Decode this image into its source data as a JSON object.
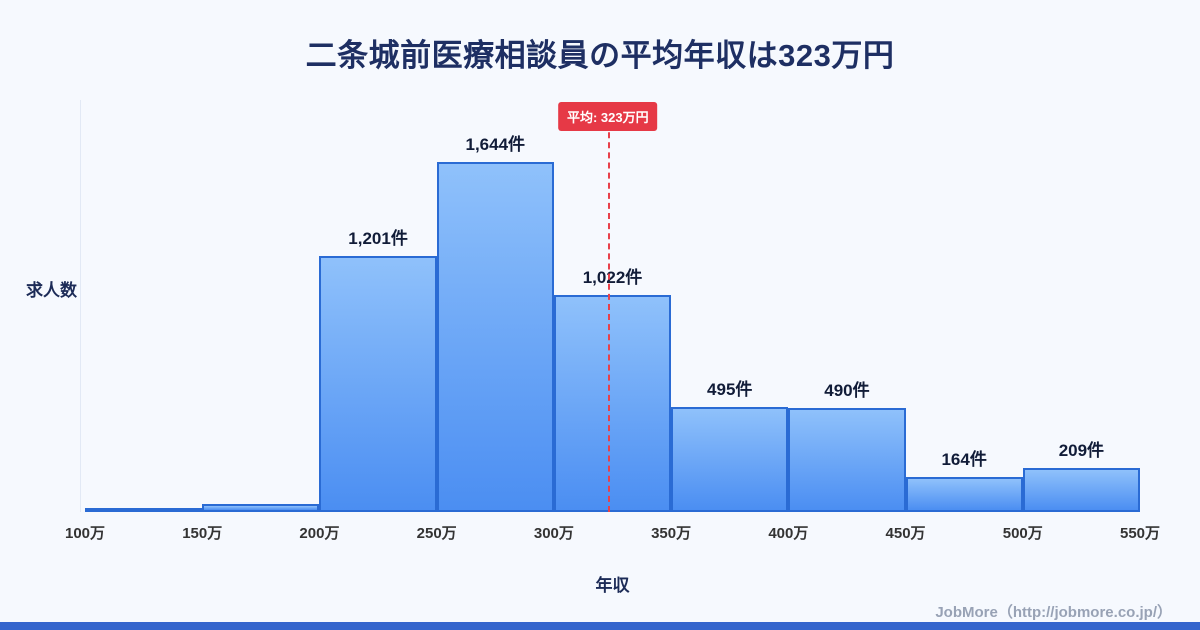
{
  "title": "二条城前医療相談員の平均年収は323万円",
  "chart_data": {
    "type": "bar",
    "title": "二条城前医療相談員の平均年収は323万円",
    "xlabel": "年収",
    "ylabel": "求人数",
    "x_ticks": [
      "100万",
      "150万",
      "200万",
      "250万",
      "300万",
      "350万",
      "400万",
      "450万",
      "500万",
      "550万"
    ],
    "x_range": [
      100,
      550
    ],
    "ylim": [
      0,
      1880
    ],
    "grid": false,
    "legend": "none",
    "bins": [
      {
        "range": "100万-150万",
        "value": 14,
        "label": ""
      },
      {
        "range": "150万-200万",
        "value": 38,
        "label": ""
      },
      {
        "range": "200万-250万",
        "value": 1201,
        "label": "1,201件"
      },
      {
        "range": "250万-300万",
        "value": 1644,
        "label": "1,644件"
      },
      {
        "range": "300万-350万",
        "value": 1022,
        "label": "1,022件"
      },
      {
        "range": "350万-400万",
        "value": 495,
        "label": "495件"
      },
      {
        "range": "400万-450万",
        "value": 490,
        "label": "490件"
      },
      {
        "range": "450万-500万",
        "value": 164,
        "label": "164件"
      },
      {
        "range": "500万-550万",
        "value": 209,
        "label": "209件"
      }
    ],
    "average": {
      "value": 323,
      "label": "平均: 323万円"
    }
  },
  "footer": {
    "credit": "JobMore（http://jobmore.co.jp/）"
  },
  "colors": {
    "bar_top": "#8fc1fb",
    "bar_bottom": "#4b8ef2",
    "bar_border": "#2a6bd4",
    "average_line": "#e8404a",
    "badge_bg": "#e63946",
    "accent_strip": "#3465cd"
  }
}
